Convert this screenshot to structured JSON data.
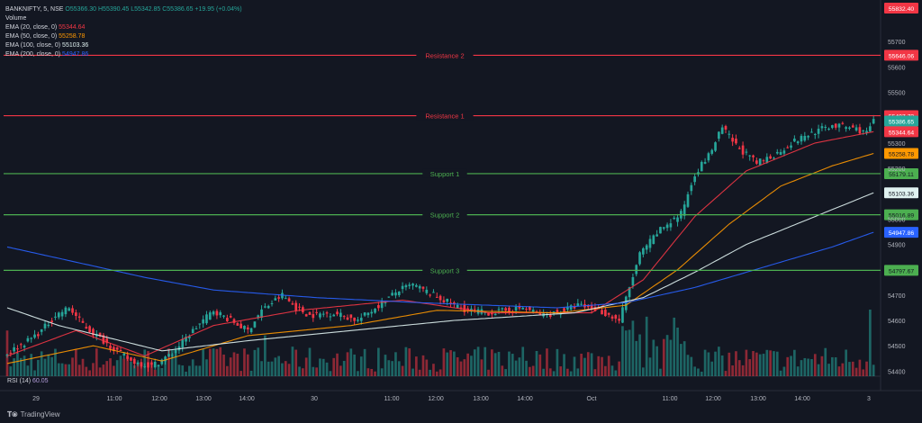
{
  "header": {
    "symbol": "BANKNIFTY, 5, NSE",
    "ohlc": "O55366.30 H55390.45 L55342.85 C55386.65 +19.95 (+0.04%)",
    "volume_label": "Volume",
    "indicators": [
      {
        "label": "EMA (20, close, 0)",
        "value": "55344.64",
        "color": "#f23645"
      },
      {
        "label": "EMA (50, close, 0)",
        "value": "55258.78",
        "color": "#ff9800"
      },
      {
        "label": "EMA (100, close, 0)",
        "value": "55103.36",
        "color": "#e0f2f1"
      },
      {
        "label": "EMA (200, close, 0)",
        "value": "54947.86",
        "color": "#2962ff"
      }
    ]
  },
  "rsi": {
    "label": "RSI (14)",
    "value": "60.05"
  },
  "watermark": "TradingView",
  "chart_data": {
    "type": "candlestick",
    "y_ticks": [
      55700,
      55600,
      55500,
      55300,
      55200,
      55000,
      54900,
      54700,
      54600,
      54500,
      54400
    ],
    "ylim": [
      54380,
      55850
    ],
    "x_tick_labels": [
      "29",
      "11:00",
      "12:00",
      "13:00",
      "14:00",
      "30",
      "11:00",
      "12:00",
      "13:00",
      "14:00",
      "Oct",
      "11:00",
      "12:00",
      "13:00",
      "14:00",
      "3"
    ],
    "levels": [
      {
        "name": "Resistance 2",
        "value": 55646.06,
        "label": "55646.06",
        "color": "#f23645"
      },
      {
        "name": "Resistance 1",
        "value": 55407.73,
        "label": "55407.73",
        "color": "#f23645"
      },
      {
        "name": "Support 1",
        "value": 55179.11,
        "label": "55179.11",
        "color": "#4caf50"
      },
      {
        "name": "Support 2",
        "value": 55016.89,
        "label": "55016.89",
        "color": "#4caf50"
      },
      {
        "name": "Support 3",
        "value": 54797.67,
        "label": "54797.67",
        "color": "#4caf50"
      }
    ],
    "price_badges": [
      {
        "value": 55832.4,
        "label": "55832.40",
        "color": "#f23645"
      },
      {
        "value": 55386.65,
        "label": "55386.65",
        "color": "#26a69a"
      },
      {
        "value": 55344.64,
        "label": "55344.64",
        "color": "#f23645"
      },
      {
        "value": 55258.78,
        "label": "55258.78",
        "color": "#ff9800"
      },
      {
        "value": 55103.36,
        "label": "55103.36",
        "color": "#e0f2f1"
      },
      {
        "value": 54947.86,
        "label": "54947.86",
        "color": "#2962ff"
      }
    ],
    "close_path": [
      [
        0,
        54470
      ],
      [
        6,
        54520
      ],
      [
        10,
        54560
      ],
      [
        14,
        54620
      ],
      [
        18,
        54650
      ],
      [
        21,
        54600
      ],
      [
        24,
        54560
      ],
      [
        30,
        54500
      ],
      [
        36,
        54440
      ],
      [
        42,
        54420
      ],
      [
        48,
        54470
      ],
      [
        54,
        54560
      ],
      [
        60,
        54640
      ],
      [
        65,
        54600
      ],
      [
        70,
        54560
      ],
      [
        74,
        54640
      ],
      [
        80,
        54700
      ],
      [
        84,
        54650
      ],
      [
        88,
        54620
      ],
      [
        95,
        54630
      ],
      [
        102,
        54600
      ],
      [
        108,
        54660
      ],
      [
        114,
        54720
      ],
      [
        118,
        54740
      ],
      [
        124,
        54700
      ],
      [
        130,
        54660
      ],
      [
        134,
        54640
      ],
      [
        140,
        54630
      ],
      [
        146,
        54640
      ],
      [
        150,
        54650
      ],
      [
        156,
        54620
      ],
      [
        162,
        54640
      ],
      [
        166,
        54660
      ],
      [
        172,
        54640
      ],
      [
        178,
        54600
      ],
      [
        184,
        54860
      ],
      [
        190,
        54960
      ],
      [
        196,
        55020
      ],
      [
        200,
        55180
      ],
      [
        204,
        55250
      ],
      [
        208,
        55360
      ],
      [
        212,
        55290
      ],
      [
        218,
        55220
      ],
      [
        224,
        55260
      ],
      [
        228,
        55300
      ],
      [
        234,
        55340
      ],
      [
        240,
        55370
      ],
      [
        246,
        55360
      ],
      [
        250,
        55340
      ],
      [
        252,
        55390
      ]
    ],
    "ema_series": [
      {
        "value": 55344.64,
        "color": "#f23645",
        "points": [
          [
            0,
            54460
          ],
          [
            20,
            54560
          ],
          [
            40,
            54460
          ],
          [
            60,
            54580
          ],
          [
            85,
            54640
          ],
          [
            115,
            54680
          ],
          [
            140,
            54630
          ],
          [
            170,
            54630
          ],
          [
            185,
            54760
          ],
          [
            200,
            55010
          ],
          [
            215,
            55190
          ],
          [
            235,
            55300
          ],
          [
            252,
            55344.64
          ]
        ]
      },
      {
        "value": 55258.78,
        "color": "#ff9800",
        "points": [
          [
            0,
            54430
          ],
          [
            25,
            54500
          ],
          [
            45,
            54440
          ],
          [
            70,
            54540
          ],
          [
            100,
            54580
          ],
          [
            125,
            54640
          ],
          [
            160,
            54630
          ],
          [
            180,
            54660
          ],
          [
            195,
            54800
          ],
          [
            210,
            54980
          ],
          [
            225,
            55130
          ],
          [
            240,
            55210
          ],
          [
            252,
            55258.78
          ]
        ]
      },
      {
        "value": 55103.36,
        "color": "#e0f2f1",
        "points": [
          [
            0,
            54650
          ],
          [
            15,
            54580
          ],
          [
            30,
            54530
          ],
          [
            45,
            54480
          ],
          [
            70,
            54520
          ],
          [
            100,
            54560
          ],
          [
            130,
            54600
          ],
          [
            165,
            54630
          ],
          [
            185,
            54690
          ],
          [
            200,
            54790
          ],
          [
            215,
            54900
          ],
          [
            235,
            55010
          ],
          [
            252,
            55103.36
          ]
        ]
      },
      {
        "value": 54947.86,
        "color": "#2962ff",
        "points": [
          [
            0,
            54890
          ],
          [
            20,
            54830
          ],
          [
            40,
            54770
          ],
          [
            60,
            54720
          ],
          [
            90,
            54690
          ],
          [
            120,
            54670
          ],
          [
            160,
            54650
          ],
          [
            180,
            54670
          ],
          [
            200,
            54730
          ],
          [
            220,
            54810
          ],
          [
            240,
            54890
          ],
          [
            252,
            54947.86
          ]
        ]
      }
    ]
  }
}
